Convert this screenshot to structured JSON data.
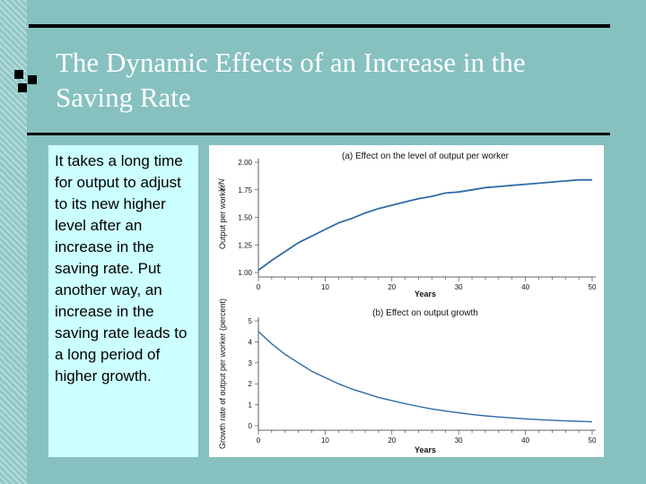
{
  "slide": {
    "title": "The Dynamic Effects of an Increase in the Saving Rate",
    "body": "It takes a long time for output to adjust to its new higher level after an increase in the saving rate. Put another way, an increase in the saving rate leads to a long period of higher growth."
  },
  "colors": {
    "background": "#86c1bf",
    "text_panel": "#ccffff",
    "curve": "#2e6ba6"
  },
  "chart_data": [
    {
      "type": "line",
      "title": "(a) Effect on the level of output per worker",
      "xlabel": "Years",
      "ylabel": "Output per worker",
      "ysymbol": "Y/N",
      "xlim": [
        0,
        50
      ],
      "ylim": [
        1.0,
        2.0
      ],
      "xticks": [
        0,
        10,
        20,
        30,
        40,
        50
      ],
      "xtick_labels": [
        "0",
        "10",
        "20",
        "30",
        "40",
        "50"
      ],
      "yticks": [
        1.0,
        1.25,
        1.5,
        1.75,
        2.0
      ],
      "ytick_labels": [
        "1.00",
        "1.25",
        "1.50",
        "1.75",
        "2.00"
      ],
      "x": [
        0,
        2,
        4,
        6,
        8,
        10,
        12,
        14,
        16,
        18,
        20,
        22,
        24,
        26,
        28,
        30,
        32,
        34,
        36,
        38,
        40,
        42,
        44,
        46,
        48,
        50
      ],
      "y": [
        1.02,
        1.11,
        1.19,
        1.27,
        1.33,
        1.39,
        1.45,
        1.49,
        1.54,
        1.58,
        1.61,
        1.64,
        1.67,
        1.69,
        1.72,
        1.73,
        1.75,
        1.77,
        1.78,
        1.79,
        1.8,
        1.81,
        1.82,
        1.83,
        1.84,
        1.84
      ]
    },
    {
      "type": "line",
      "title": "(b) Effect on output growth",
      "xlabel": "Years",
      "ylabel": "Growth rate of output per worker (percent)",
      "xlim": [
        0,
        50
      ],
      "ylim": [
        0,
        5
      ],
      "xticks": [
        0,
        10,
        20,
        30,
        40,
        50
      ],
      "xtick_labels": [
        "0",
        "10",
        "20",
        "30",
        "40",
        "50"
      ],
      "yticks": [
        0,
        1,
        2,
        3,
        4,
        5
      ],
      "ytick_labels": [
        "0",
        "1",
        "2",
        "3",
        "4",
        "5"
      ],
      "x": [
        0,
        2,
        4,
        6,
        8,
        10,
        12,
        14,
        16,
        18,
        20,
        22,
        24,
        26,
        28,
        30,
        32,
        34,
        36,
        38,
        40,
        42,
        44,
        46,
        48,
        50
      ],
      "y": [
        4.5,
        3.9,
        3.4,
        3.0,
        2.6,
        2.3,
        2.0,
        1.75,
        1.55,
        1.35,
        1.2,
        1.05,
        0.92,
        0.8,
        0.7,
        0.62,
        0.54,
        0.47,
        0.42,
        0.37,
        0.33,
        0.29,
        0.26,
        0.23,
        0.21,
        0.19
      ]
    }
  ]
}
